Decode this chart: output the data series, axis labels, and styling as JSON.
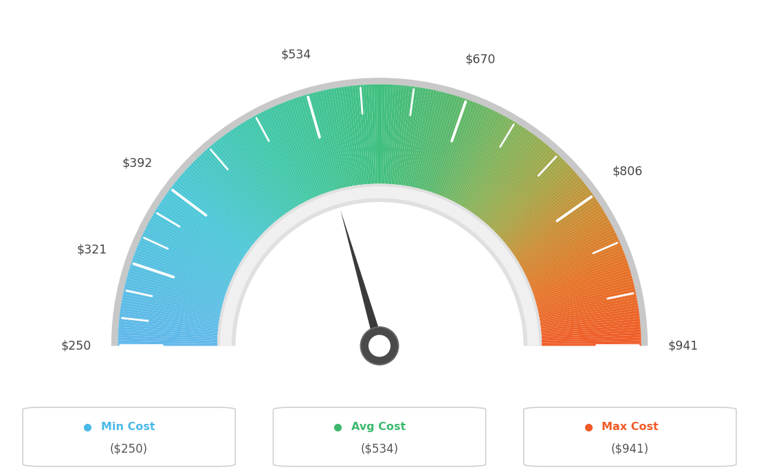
{
  "min_val": 250,
  "max_val": 941,
  "avg_val": 534,
  "tick_labels": [
    "$250",
    "$321",
    "$392",
    "$534",
    "$670",
    "$806",
    "$941"
  ],
  "tick_values": [
    250,
    321,
    392,
    534,
    670,
    806,
    941
  ],
  "needle_value": 534,
  "legend": [
    {
      "label": "Min Cost",
      "value": "($250)",
      "color": "#4ab8e8"
    },
    {
      "label": "Avg Cost",
      "value": "($534)",
      "color": "#3cb96e"
    },
    {
      "label": "Max Cost",
      "value": "($941)",
      "color": "#f05a28"
    }
  ],
  "color_stops": [
    [
      0.0,
      [
        0.38,
        0.72,
        0.92
      ]
    ],
    [
      0.2,
      [
        0.3,
        0.78,
        0.85
      ]
    ],
    [
      0.35,
      [
        0.25,
        0.78,
        0.65
      ]
    ],
    [
      0.5,
      [
        0.25,
        0.75,
        0.5
      ]
    ],
    [
      0.6,
      [
        0.35,
        0.72,
        0.42
      ]
    ],
    [
      0.68,
      [
        0.52,
        0.7,
        0.35
      ]
    ],
    [
      0.75,
      [
        0.65,
        0.65,
        0.28
      ]
    ],
    [
      0.82,
      [
        0.8,
        0.55,
        0.2
      ]
    ],
    [
      0.9,
      [
        0.9,
        0.45,
        0.15
      ]
    ],
    [
      1.0,
      [
        0.94,
        0.36,
        0.16
      ]
    ]
  ],
  "background_color": "#ffffff"
}
